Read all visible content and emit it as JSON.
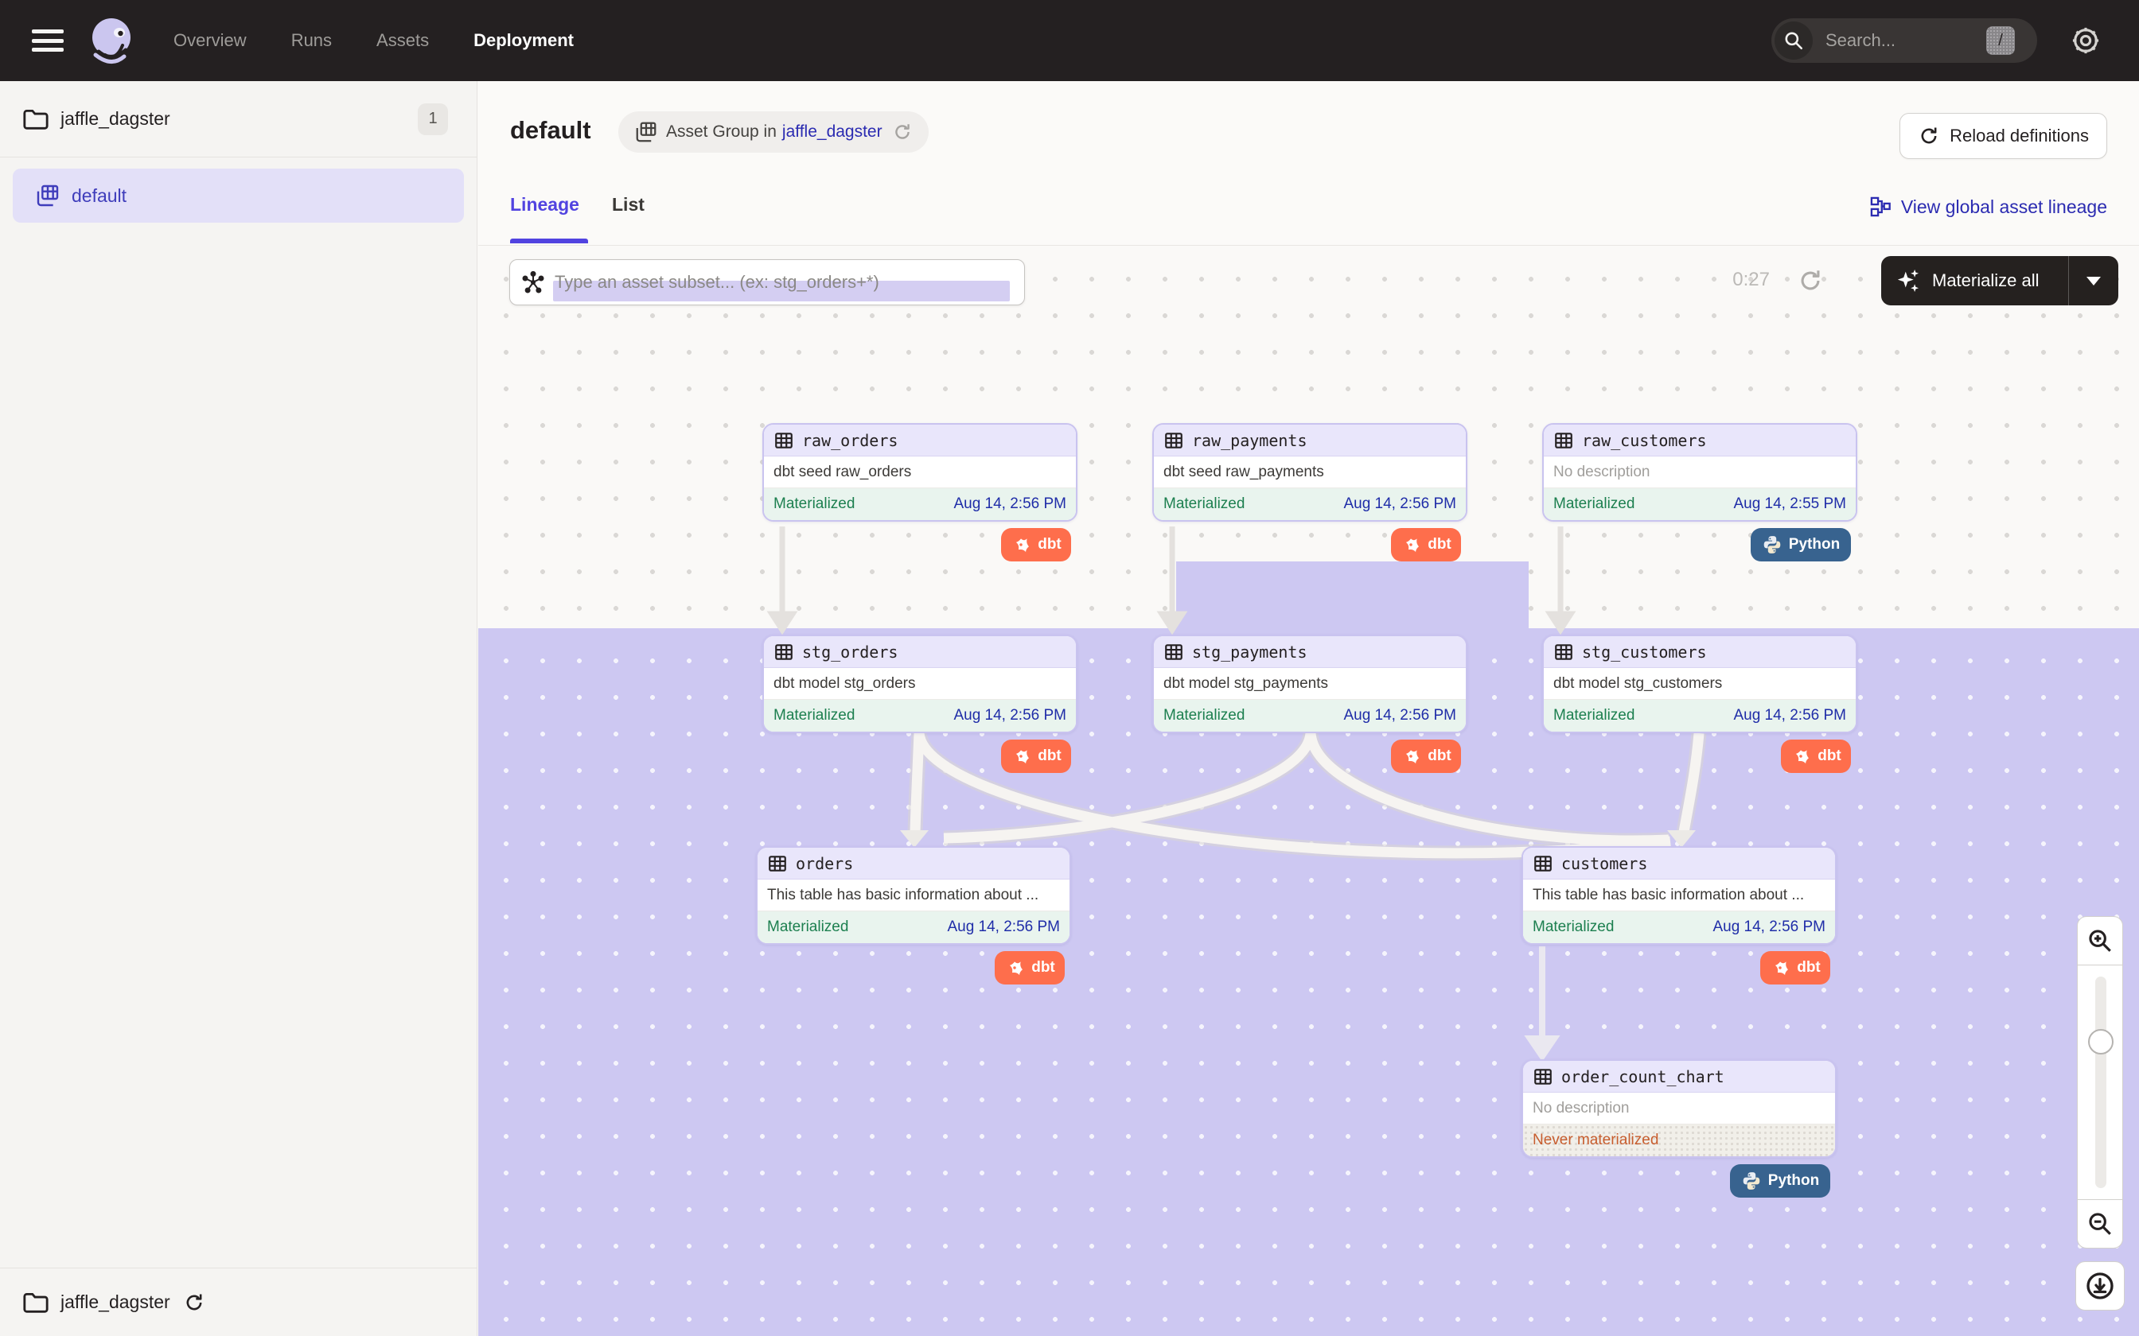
{
  "nav": {
    "items": [
      {
        "label": "Overview",
        "active": false
      },
      {
        "label": "Runs",
        "active": false
      },
      {
        "label": "Assets",
        "active": false
      },
      {
        "label": "Deployment",
        "active": true
      }
    ],
    "search_placeholder": "Search...",
    "search_shortcut": "/"
  },
  "sidebar": {
    "project": "jaffle_dagster",
    "project_count": "1",
    "selected_group": "default",
    "footer_project": "jaffle_dagster"
  },
  "header": {
    "title": "default",
    "group_pill_prefix": "Asset Group in",
    "group_pill_link": "jaffle_dagster",
    "reload_button": "Reload definitions",
    "tabs": [
      {
        "label": "Lineage",
        "active": true
      },
      {
        "label": "List",
        "active": false
      }
    ],
    "global_lineage_link": "View global asset lineage"
  },
  "toolbar": {
    "subset_placeholder": "Type an asset subset... (ex: stg_orders+*)",
    "timer": "0:27",
    "materialize_button": "Materialize all"
  },
  "graph": {
    "nodes": [
      {
        "name": "raw_orders",
        "description": "dbt seed raw_orders",
        "status": "Materialized",
        "status_type": "ok",
        "time": "Aug 14, 2:56 PM",
        "badge": "dbt"
      },
      {
        "name": "raw_payments",
        "description": "dbt seed raw_payments",
        "status": "Materialized",
        "status_type": "ok",
        "time": "Aug 14, 2:56 PM",
        "badge": "dbt"
      },
      {
        "name": "raw_customers",
        "description": "No description",
        "status": "Materialized",
        "status_type": "ok",
        "time": "Aug 14, 2:55 PM",
        "badge": "Python"
      },
      {
        "name": "stg_orders",
        "description": "dbt model stg_orders",
        "status": "Materialized",
        "status_type": "ok",
        "time": "Aug 14, 2:56 PM",
        "badge": "dbt"
      },
      {
        "name": "stg_payments",
        "description": "dbt model stg_payments",
        "status": "Materialized",
        "status_type": "ok",
        "time": "Aug 14, 2:56 PM",
        "badge": "dbt"
      },
      {
        "name": "stg_customers",
        "description": "dbt model stg_customers",
        "status": "Materialized",
        "status_type": "ok",
        "time": "Aug 14, 2:56 PM",
        "badge": "dbt"
      },
      {
        "name": "orders",
        "description": "This table has basic information about ...",
        "status": "Materialized",
        "status_type": "ok",
        "time": "Aug 14, 2:56 PM",
        "badge": "dbt"
      },
      {
        "name": "customers",
        "description": "This table has basic information about ...",
        "status": "Materialized",
        "status_type": "ok",
        "time": "Aug 14, 2:56 PM",
        "badge": "dbt"
      },
      {
        "name": "order_count_chart",
        "description": "No description",
        "status": "Never materialized",
        "status_type": "never",
        "time": "",
        "badge": "Python"
      }
    ]
  },
  "zoom_controls": {
    "zoom_in": "zoom in",
    "zoom_out": "zoom out",
    "download": "download image"
  },
  "colors": {
    "accent_indigo": "#5143e0",
    "link_navy": "#2b2bb1",
    "band_lavender": "#cdc8f2",
    "node_header": "#e9e6fb",
    "materialized_green": "#1c7f4f",
    "never_orange": "#c75d2e",
    "dbt_badge": "#fe6e4c",
    "python_badge": "#38638f",
    "topnav_bg": "#242021"
  }
}
